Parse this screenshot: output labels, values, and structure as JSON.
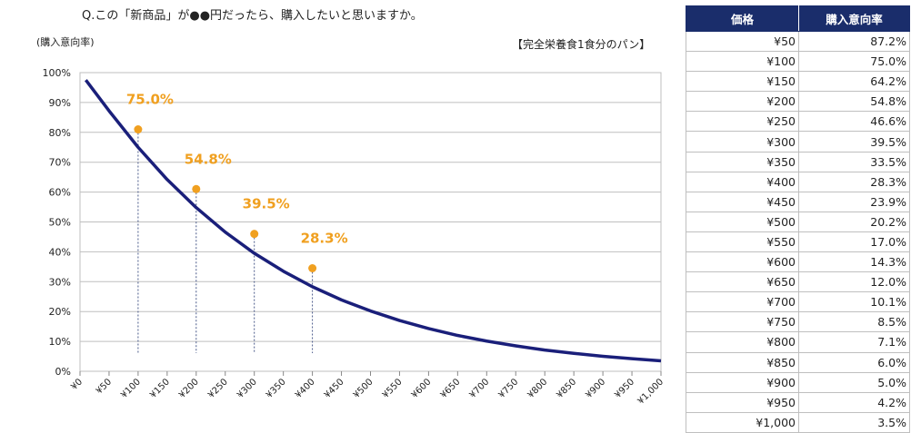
{
  "header": {
    "question": "Q.この「新商品」が●●円だったら、購入したいと思いますか。",
    "y_axis_label": "(購入意向率)",
    "subtitle": "【完全栄養食1食分のパン】"
  },
  "colors": {
    "curve": "#1a1f7a",
    "callout": "#f0a020",
    "table_header": "#1a2d6b",
    "grid": "#bfbfbf"
  },
  "chart_data": {
    "type": "line",
    "title": "",
    "subtitle": "【完全栄養食1食分のパン】",
    "xlabel": "",
    "ylabel": "(購入意向率)",
    "x_ticks": [
      "¥0",
      "¥50",
      "¥100",
      "¥150",
      "¥200",
      "¥250",
      "¥300",
      "¥350",
      "¥400",
      "¥450",
      "¥500",
      "¥550",
      "¥600",
      "¥650",
      "¥700",
      "¥750",
      "¥800",
      "¥850",
      "¥900",
      "¥950",
      "¥1,000"
    ],
    "y_ticks": [
      "0%",
      "10%",
      "20%",
      "30%",
      "40%",
      "50%",
      "60%",
      "70%",
      "80%",
      "90%",
      "100%"
    ],
    "xlim": [
      0,
      1000
    ],
    "ylim": [
      0,
      100
    ],
    "grid": true,
    "series": [
      {
        "x": [
          10,
          50,
          100,
          150,
          200,
          250,
          300,
          350,
          400,
          450,
          500,
          550,
          600,
          650,
          700,
          750,
          800,
          850,
          900,
          950,
          1000
        ],
        "y": [
          97.5,
          87.2,
          75.0,
          64.2,
          54.8,
          46.6,
          39.5,
          33.5,
          28.3,
          23.9,
          20.2,
          17.0,
          14.3,
          12.0,
          10.1,
          8.5,
          7.1,
          6.0,
          5.0,
          4.2,
          3.5
        ]
      }
    ],
    "annotations": [
      {
        "x": 100,
        "y": 75.0,
        "marker_y": 81,
        "label": "75.0%"
      },
      {
        "x": 200,
        "y": 54.8,
        "marker_y": 61,
        "label": "54.8%"
      },
      {
        "x": 300,
        "y": 39.5,
        "marker_y": 46,
        "label": "39.5%"
      },
      {
        "x": 400,
        "y": 28.3,
        "marker_y": 34.5,
        "label": "28.3%"
      }
    ]
  },
  "table": {
    "headers": [
      "価格",
      "購入意向率"
    ],
    "rows": [
      [
        "¥50",
        "87.2%"
      ],
      [
        "¥100",
        "75.0%"
      ],
      [
        "¥150",
        "64.2%"
      ],
      [
        "¥200",
        "54.8%"
      ],
      [
        "¥250",
        "46.6%"
      ],
      [
        "¥300",
        "39.5%"
      ],
      [
        "¥350",
        "33.5%"
      ],
      [
        "¥400",
        "28.3%"
      ],
      [
        "¥450",
        "23.9%"
      ],
      [
        "¥500",
        "20.2%"
      ],
      [
        "¥550",
        "17.0%"
      ],
      [
        "¥600",
        "14.3%"
      ],
      [
        "¥650",
        "12.0%"
      ],
      [
        "¥700",
        "10.1%"
      ],
      [
        "¥750",
        "8.5%"
      ],
      [
        "¥800",
        "7.1%"
      ],
      [
        "¥850",
        "6.0%"
      ],
      [
        "¥900",
        "5.0%"
      ],
      [
        "¥950",
        "4.2%"
      ],
      [
        "¥1,000",
        "3.5%"
      ]
    ]
  }
}
